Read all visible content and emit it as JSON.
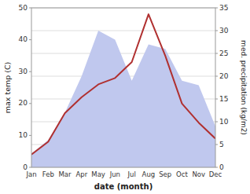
{
  "chart_data": {
    "type": "line",
    "xlabel": "date (month)",
    "ylabel": "max temp (C)",
    "y2label": "med. precipitation (kg/m2)",
    "categories": [
      "Jan",
      "Feb",
      "Mar",
      "Apr",
      "May",
      "Jun",
      "Jul",
      "Aug",
      "Sep",
      "Oct",
      "Nov",
      "Dec"
    ],
    "series": [
      {
        "type": "area",
        "axis": "y2",
        "color": "#c0c8ee",
        "values": [
          3,
          6,
          12,
          20,
          30,
          28,
          19,
          27,
          26,
          19,
          18,
          9
        ]
      },
      {
        "type": "line",
        "color": "#b03030",
        "values": [
          4,
          8,
          17,
          22,
          26,
          28,
          33,
          48,
          35,
          20,
          14,
          9
        ]
      }
    ],
    "ylim": [
      0,
      50
    ],
    "yticks": [
      0,
      10,
      20,
      30,
      40,
      50
    ],
    "y2lim": [
      0,
      35
    ],
    "y2ticks": [
      0,
      5,
      10,
      15,
      20,
      25,
      30,
      35
    ],
    "grid": true
  }
}
